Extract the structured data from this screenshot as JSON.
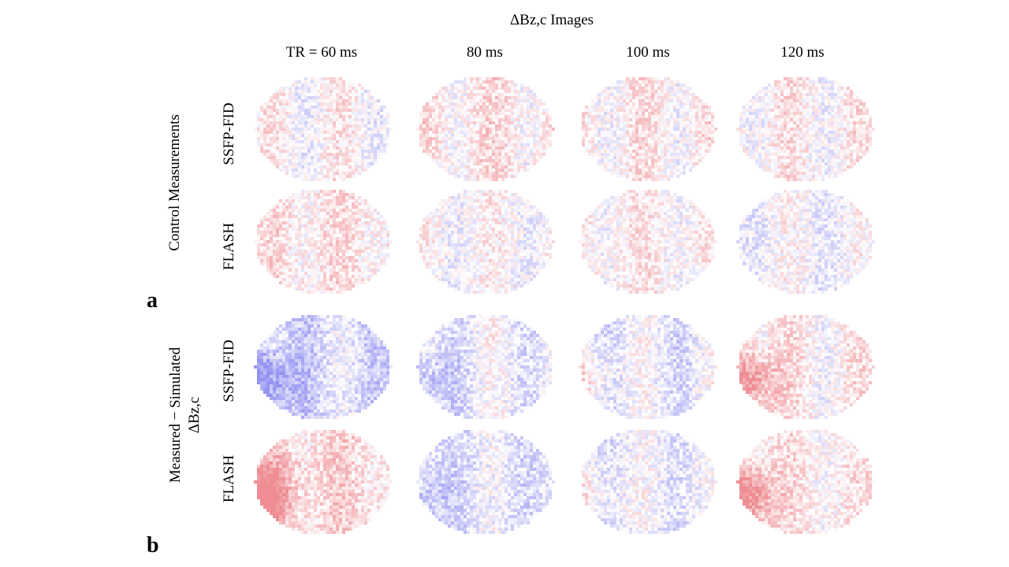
{
  "figure": {
    "title": "ΔBz,c Images",
    "columns": [
      "TR = 60 ms",
      "80 ms",
      "100 ms",
      "120 ms"
    ],
    "panels": [
      {
        "letter": "a",
        "group_label": "Control Measurements",
        "rows": [
          "SSFP-FID",
          "FLASH"
        ]
      },
      {
        "letter": "b",
        "group_label_line1": "Measured − Simulated",
        "group_label_line2": "ΔBz,c",
        "rows": [
          "SSFP-FID",
          "FLASH"
        ]
      }
    ]
  },
  "colors": {
    "positive": "#e0303a",
    "negative": "#3a3ae6",
    "background": "#ffffff"
  }
}
